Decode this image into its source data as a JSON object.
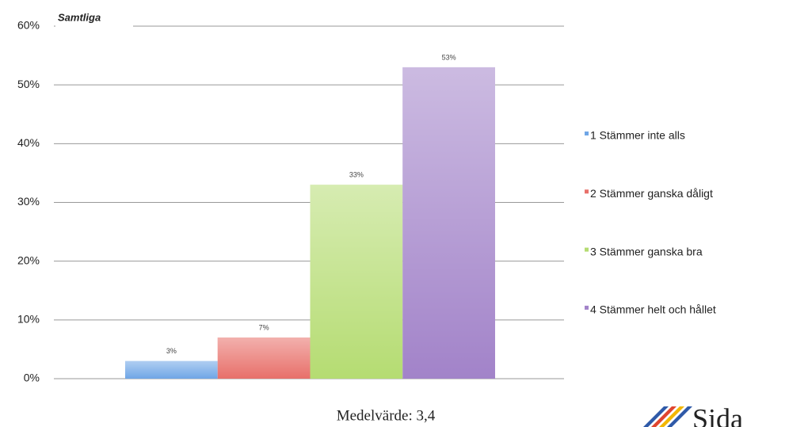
{
  "chart_data": {
    "type": "bar",
    "title": "Samtliga",
    "categories": [
      null
    ],
    "series": [
      {
        "name": "1 Stämmer inte alls",
        "color": "#6fa6e6",
        "values": [
          3
        ],
        "value_labels": [
          "3%"
        ]
      },
      {
        "name": "2 Stämmer ganska dåligt",
        "color": "#e8706a",
        "values": [
          7
        ],
        "value_labels": [
          "7%"
        ]
      },
      {
        "name": "3 Stämmer ganska bra",
        "color": "#b5dc72",
        "values": [
          33
        ],
        "value_labels": [
          "33%"
        ]
      },
      {
        "name": "4 Stämmer helt och hållet",
        "color": "#a283c9",
        "values": [
          53
        ],
        "value_labels": [
          "53%"
        ]
      }
    ],
    "ylim": [
      0,
      60
    ],
    "yticks": [
      {
        "value": 0,
        "label": "0%"
      },
      {
        "value": 10,
        "label": "10%"
      },
      {
        "value": 20,
        "label": "20%"
      },
      {
        "value": 30,
        "label": "30%"
      },
      {
        "value": 40,
        "label": "40%"
      },
      {
        "value": 50,
        "label": "50%"
      },
      {
        "value": 60,
        "label": "60%"
      }
    ],
    "grid": true,
    "legend": "right",
    "annotation": "Medelvärde: 3,4"
  },
  "logo": {
    "text": "Sida"
  }
}
